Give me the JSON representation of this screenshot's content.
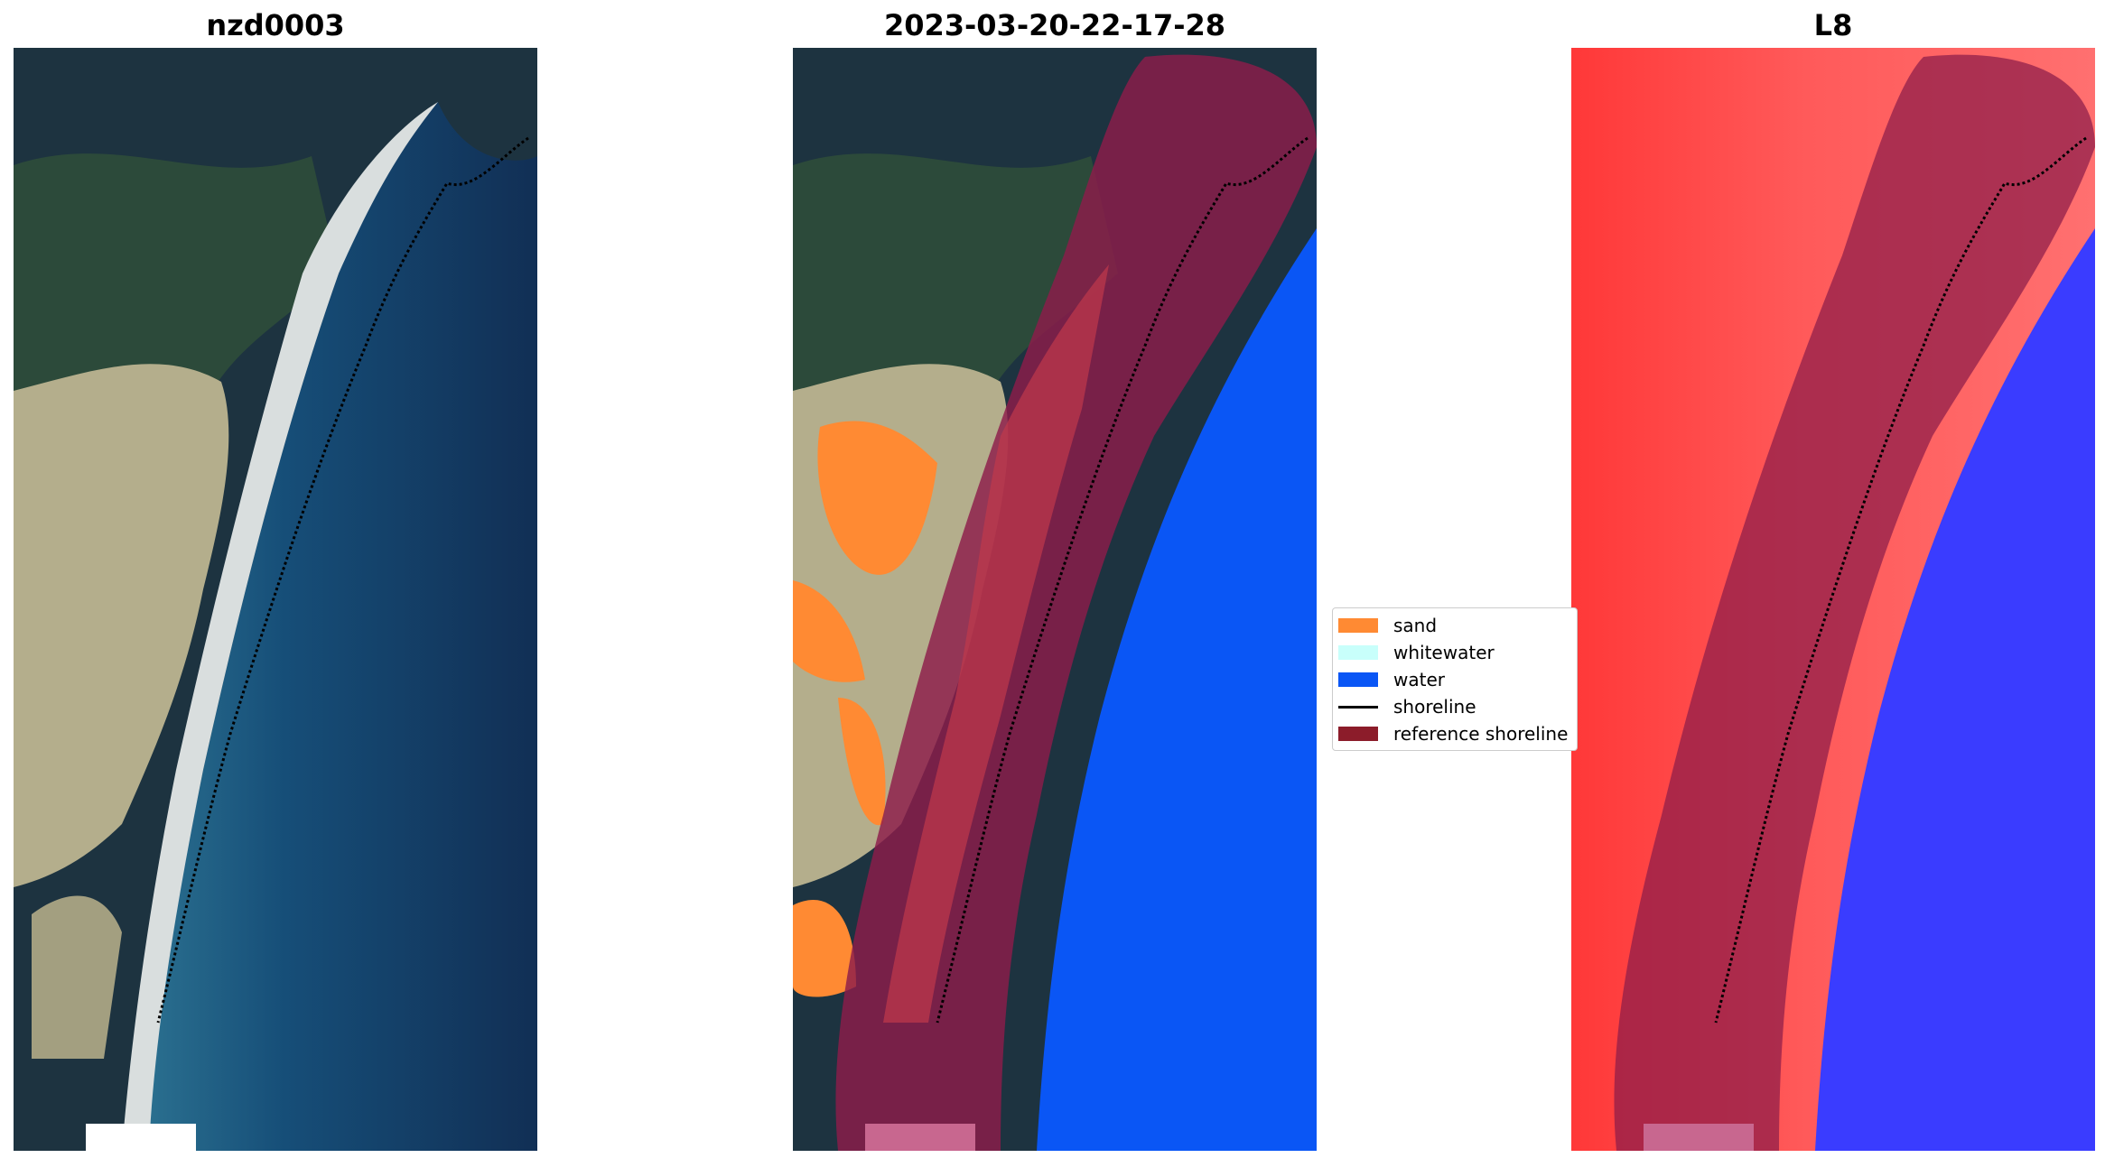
{
  "panels": [
    {
      "title": "nzd0003"
    },
    {
      "title": "2023-03-20-22-17-28"
    },
    {
      "title": "L8"
    }
  ],
  "legend": {
    "items": [
      {
        "label": "sand",
        "kind": "patch",
        "color": "#ff8a33"
      },
      {
        "label": "whitewater",
        "kind": "patch",
        "color": "#c8fffb"
      },
      {
        "label": "water",
        "kind": "patch",
        "color": "#0a56f5"
      },
      {
        "label": "shoreline",
        "kind": "line",
        "color": "#000000"
      },
      {
        "label": "reference shoreline",
        "kind": "patch",
        "color": "#8c1c2a"
      }
    ]
  },
  "colors": {
    "land_dark": "#1d3340",
    "vegetation": "#2c4a3a",
    "dune_sand": "#b4ae8c",
    "beach": "#d9dede",
    "ocean": "#123f6a",
    "sand_class": "#ff8a33",
    "water_class": "#0a56f5",
    "buffer": "#8c1c4a",
    "index_land": "#ff3838",
    "index_water": "#3a3cff"
  }
}
